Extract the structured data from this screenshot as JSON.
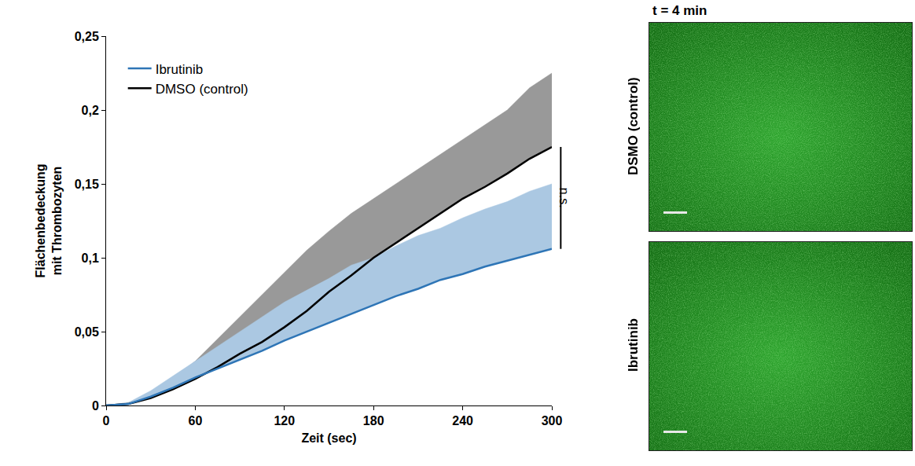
{
  "chart_data": {
    "type": "line",
    "x_label": "Zeit (sec)",
    "y_label": "Flächenbedeckung mit Thrombozyten",
    "x": [
      0,
      15,
      30,
      45,
      60,
      75,
      90,
      105,
      120,
      135,
      150,
      165,
      180,
      195,
      210,
      225,
      240,
      255,
      270,
      285,
      300
    ],
    "series": [
      {
        "name": "DMSO (control)",
        "color": "#000000",
        "values": [
          0,
          0.001,
          0.005,
          0.011,
          0.018,
          0.026,
          0.035,
          0.043,
          0.053,
          0.064,
          0.077,
          0.088,
          0.1,
          0.11,
          0.12,
          0.13,
          0.14,
          0.148,
          0.157,
          0.167,
          0.175
        ],
        "upper": [
          0,
          0.002,
          0.008,
          0.018,
          0.03,
          0.045,
          0.06,
          0.075,
          0.09,
          0.105,
          0.118,
          0.13,
          0.14,
          0.15,
          0.16,
          0.17,
          0.18,
          0.19,
          0.2,
          0.215,
          0.225
        ]
      },
      {
        "name": "Ibrutinib",
        "color": "#2e75b6",
        "values": [
          0,
          0.001,
          0.006,
          0.012,
          0.019,
          0.025,
          0.031,
          0.037,
          0.044,
          0.05,
          0.056,
          0.062,
          0.068,
          0.074,
          0.079,
          0.085,
          0.089,
          0.094,
          0.098,
          0.102,
          0.106
        ],
        "upper": [
          0,
          0.002,
          0.01,
          0.02,
          0.03,
          0.04,
          0.05,
          0.06,
          0.07,
          0.078,
          0.086,
          0.095,
          0.1,
          0.108,
          0.115,
          0.12,
          0.127,
          0.133,
          0.138,
          0.145,
          0.15
        ]
      }
    ],
    "xlim": [
      0,
      300
    ],
    "xticks": [
      0,
      60,
      120,
      180,
      240,
      300
    ],
    "ylim": [
      0,
      0.25
    ],
    "yticks": [
      0,
      {
        "value": 0.05,
        "label": "0,05"
      },
      {
        "value": 0.1,
        "label": "0,1"
      },
      {
        "value": 0.15,
        "label": "0,15"
      },
      {
        "value": 0.2,
        "label": "0,2"
      },
      {
        "value": 0.25,
        "label": "0,25"
      }
    ],
    "grid": false,
    "legend": "upper left",
    "annotations": [
      {
        "text": "n.s."
      }
    ]
  },
  "image_panels": {
    "title": "t = 4 min",
    "rows": [
      "DSMO (control)",
      "Ibrutinib"
    ]
  }
}
